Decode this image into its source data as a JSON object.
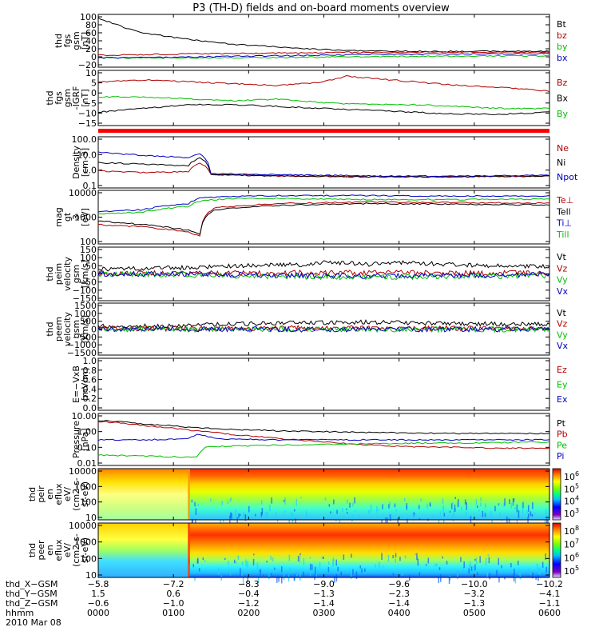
{
  "title": "P3 (TH-D) fields and on-board moments overview",
  "chart_data": [
    {
      "type": "line",
      "ylabel": [
        "thd",
        "fgs",
        "gsm",
        "[nT]"
      ],
      "y_ticks": [
        "100",
        "80",
        "60",
        "40",
        "20",
        "0",
        "−20"
      ],
      "ylim": [
        -20,
        100
      ],
      "series": [
        {
          "name": "Bt",
          "color": "#000000",
          "x": [
            0,
            0.05,
            0.1,
            0.2,
            0.3,
            0.4,
            0.5,
            0.55,
            0.6,
            0.7,
            0.8,
            0.9,
            1
          ],
          "y": [
            92,
            73,
            58,
            43,
            32,
            26,
            20,
            18,
            17,
            16,
            16,
            16,
            16
          ]
        },
        {
          "name": "bz",
          "color": "#b00000",
          "x": [
            0,
            0.2,
            0.4,
            0.6,
            0.8,
            1
          ],
          "y": [
            7,
            10,
            12,
            14,
            14,
            14
          ]
        },
        {
          "name": "by",
          "color": "#00c000",
          "x": [
            0,
            0.2,
            0.4,
            0.6,
            0.8,
            1
          ],
          "y": [
            1,
            1,
            2,
            4,
            5,
            6
          ]
        },
        {
          "name": "bx",
          "color": "#0000c0",
          "x": [
            0,
            0.2,
            0.4,
            0.6,
            0.8,
            1
          ],
          "y": [
            1,
            3,
            6,
            9,
            10,
            11
          ]
        }
      ]
    },
    {
      "type": "line",
      "ylabel": [
        "thd",
        "fgs",
        "gsm",
        "-IGRF",
        "[nT]"
      ],
      "y_ticks": [
        "10",
        "5",
        "0",
        "−5",
        "−10",
        "−15"
      ],
      "ylim": [
        -17,
        12
      ],
      "series": [
        {
          "name": "Bz",
          "color": "#b00000",
          "x": [
            0,
            0.1,
            0.2,
            0.3,
            0.4,
            0.5,
            0.55,
            0.6,
            0.7,
            0.8,
            0.9,
            1
          ],
          "y": [
            6,
            7,
            6,
            5,
            4,
            6,
            9,
            8,
            6,
            4,
            3,
            1
          ]
        },
        {
          "name": "Bx",
          "color": "#000000",
          "x": [
            0,
            0.1,
            0.2,
            0.3,
            0.4,
            0.5,
            0.6,
            0.7,
            0.8,
            0.9,
            1
          ],
          "y": [
            -10,
            -8,
            -6,
            -6,
            -7,
            -8,
            -9,
            -10,
            -11,
            -11,
            -10
          ]
        },
        {
          "name": "By",
          "color": "#00c000",
          "x": [
            0,
            0.1,
            0.2,
            0.3,
            0.4,
            0.5,
            0.6,
            0.7,
            0.8,
            0.9,
            1
          ],
          "y": [
            -2,
            -2,
            -3,
            -4,
            -3,
            -5,
            -6,
            -6,
            -7,
            -8,
            -8
          ]
        }
      ]
    },
    {
      "type": "line",
      "ylabel": [
        "Density",
        "[cm-3]"
      ],
      "y_ticks": [
        "100.0",
        "10.0",
        "1.0",
        "0.1"
      ],
      "ylim": [
        0.1,
        100
      ],
      "scale": "log",
      "series": [
        {
          "name": "Ne",
          "color": "#b00000",
          "x": [
            0,
            0.1,
            0.2,
            0.225,
            0.25,
            0.4,
            0.6,
            0.8,
            1
          ],
          "y": [
            1.0,
            0.8,
            0.9,
            3,
            0.6,
            0.5,
            0.45,
            0.45,
            0.5
          ]
        },
        {
          "name": "Ni",
          "color": "#000000",
          "x": [
            0,
            0.1,
            0.2,
            0.225,
            0.25,
            0.4,
            0.6,
            0.8,
            1
          ],
          "y": [
            3,
            2.5,
            2,
            6,
            0.6,
            0.5,
            0.45,
            0.45,
            0.5
          ]
        },
        {
          "name": "Npot",
          "color": "#0000c0",
          "x": [
            0,
            0.1,
            0.2,
            0.225,
            0.25,
            0.4,
            0.6,
            0.8,
            1
          ],
          "y": [
            12,
            8,
            6,
            10,
            0.7,
            0.6,
            0.5,
            0.5,
            0.55
          ]
        }
      ]
    },
    {
      "type": "line",
      "ylabel": [
        "mag",
        "gt",
        "3",
        "[eV]"
      ],
      "y_ticks": [
        "10000",
        "1000",
        "100"
      ],
      "ylim": [
        20,
        12000
      ],
      "scale": "log",
      "series": [
        {
          "name": "Te⊥",
          "color": "#b00000",
          "x": [
            0,
            0.1,
            0.2,
            0.225,
            0.26,
            0.4,
            0.6,
            0.8,
            1
          ],
          "y": [
            200,
            150,
            80,
            50,
            1500,
            2500,
            3000,
            2800,
            2600
          ]
        },
        {
          "name": "Tell",
          "color": "#000000",
          "x": [
            0,
            0.1,
            0.2,
            0.225,
            0.26,
            0.4,
            0.6,
            0.8,
            1
          ],
          "y": [
            300,
            200,
            100,
            60,
            1200,
            2000,
            2500,
            2300,
            2100
          ]
        },
        {
          "name": "Ti⊥",
          "color": "#0000c0",
          "x": [
            0,
            0.1,
            0.2,
            0.23,
            0.3,
            0.4,
            0.6,
            0.8,
            1
          ],
          "y": [
            900,
            1200,
            2500,
            5000,
            6000,
            6500,
            6500,
            6000,
            6000
          ]
        },
        {
          "name": "Till",
          "color": "#00c000",
          "x": [
            0,
            0.1,
            0.2,
            0.23,
            0.3,
            0.4,
            0.6,
            0.8,
            1
          ],
          "y": [
            700,
            900,
            1800,
            3500,
            4500,
            4500,
            4000,
            4000,
            4200
          ]
        }
      ]
    },
    {
      "type": "line",
      "ylabel": [
        "thd",
        "peim",
        "velocity",
        "gsm",
        "[km/s]"
      ],
      "y_ticks": [
        "150",
        "100",
        "50",
        "0",
        "−50",
        "−100",
        "−150"
      ],
      "ylim": [
        -160,
        160
      ],
      "series": [
        {
          "name": "Vt",
          "color": "#000000",
          "x": [
            0,
            0.1,
            0.2,
            0.3,
            0.4,
            0.45,
            0.5,
            0.6,
            0.7,
            0.8,
            0.9,
            1
          ],
          "y": [
            15,
            20,
            25,
            35,
            45,
            40,
            55,
            45,
            55,
            40,
            35,
            30
          ]
        },
        {
          "name": "Vz",
          "color": "#b00000",
          "x": [
            0,
            0.2,
            0.4,
            0.6,
            0.8,
            1
          ],
          "y": [
            2,
            3,
            5,
            8,
            5,
            3
          ]
        },
        {
          "name": "Vy",
          "color": "#00c000",
          "x": [
            0,
            0.2,
            0.4,
            0.6,
            0.8,
            1
          ],
          "y": [
            0,
            -5,
            -15,
            -20,
            -15,
            -10
          ]
        },
        {
          "name": "Vx",
          "color": "#0000c0",
          "x": [
            0,
            0.2,
            0.4,
            0.6,
            0.8,
            1
          ],
          "y": [
            0,
            -2,
            -8,
            -12,
            -8,
            -5
          ]
        }
      ]
    },
    {
      "type": "line",
      "ylabel": [
        "thd",
        "peem",
        "velocity",
        "gsm",
        "[km/s]"
      ],
      "y_ticks": [
        "1500",
        "1000",
        "500",
        "0",
        "−500",
        "−1000",
        "−1500"
      ],
      "ylim": [
        -1600,
        1600
      ],
      "series": [
        {
          "name": "Vt",
          "color": "#000000",
          "x": [
            0,
            0.1,
            0.2,
            0.25,
            0.4,
            0.6,
            0.8,
            1
          ],
          "y": [
            50,
            60,
            80,
            150,
            250,
            300,
            200,
            180
          ]
        },
        {
          "name": "Vz",
          "color": "#b00000",
          "x": [
            0,
            0.25,
            0.5,
            0.75,
            1
          ],
          "y": [
            20,
            40,
            60,
            50,
            40
          ]
        },
        {
          "name": "Vy",
          "color": "#00c000",
          "x": [
            0,
            0.25,
            0.5,
            0.75,
            1
          ],
          "y": [
            0,
            -20,
            -30,
            -20,
            -10
          ]
        },
        {
          "name": "Vx",
          "color": "#0000c0",
          "x": [
            0,
            0.25,
            0.5,
            0.75,
            1
          ],
          "y": [
            0,
            -10,
            -20,
            -10,
            0
          ]
        }
      ]
    },
    {
      "type": "line",
      "ylabel": [
        "E=−VxB",
        "[mV/m]"
      ],
      "y_ticks": [
        "1.0",
        "0.8",
        "0.6",
        "0.4",
        "0.2",
        "0.0"
      ],
      "ylim": [
        0,
        1
      ],
      "series": [
        {
          "name": "Ez",
          "color": "#b00000",
          "x": [],
          "y": []
        },
        {
          "name": "Ey",
          "color": "#00c000",
          "x": [],
          "y": []
        },
        {
          "name": "Ex",
          "color": "#0000c0",
          "x": [],
          "y": []
        }
      ]
    },
    {
      "type": "line",
      "ylabel": [
        "Pressure",
        "[nPa]"
      ],
      "y_ticks": [
        "10.00",
        "1.00",
        "0.10",
        "0.01"
      ],
      "ylim": [
        0.01,
        10
      ],
      "scale": "log",
      "series": [
        {
          "name": "Pt",
          "color": "#000000",
          "x": [
            0,
            0.1,
            0.2,
            0.3,
            0.4,
            0.5,
            0.6,
            0.7,
            0.8,
            0.9,
            1
          ],
          "y": [
            4,
            2.5,
            1.6,
            1.2,
            1.0,
            0.9,
            0.8,
            0.75,
            0.7,
            0.7,
            0.7
          ]
        },
        {
          "name": "Pb",
          "color": "#b00000",
          "x": [
            0,
            0.1,
            0.2,
            0.3,
            0.4,
            0.5,
            0.6,
            0.7,
            0.8,
            0.9,
            1
          ],
          "y": [
            3.5,
            2,
            1.1,
            0.6,
            0.35,
            0.22,
            0.15,
            0.12,
            0.11,
            0.1,
            0.1
          ]
        },
        {
          "name": "Pe",
          "color": "#00c000",
          "x": [
            0,
            0.1,
            0.2,
            0.22,
            0.24,
            0.4,
            0.6,
            0.8,
            1
          ],
          "y": [
            0.04,
            0.035,
            0.03,
            0.03,
            0.12,
            0.15,
            0.18,
            0.2,
            0.22
          ]
        },
        {
          "name": "Pi",
          "color": "#0000c0",
          "x": [
            0,
            0.1,
            0.2,
            0.22,
            0.26,
            0.4,
            0.6,
            0.8,
            1
          ],
          "y": [
            0.3,
            0.3,
            0.35,
            0.6,
            0.35,
            0.3,
            0.3,
            0.3,
            0.3
          ]
        }
      ]
    },
    {
      "type": "heatmap",
      "ylabel": [
        "thd",
        "peir",
        "en",
        "eflux",
        "eV/",
        "(cm2-s-",
        "sr-eV)"
      ],
      "y_ticks": [
        "10000",
        "1000",
        "100",
        "10"
      ],
      "ylim": [
        7,
        25000
      ],
      "scale": "log",
      "colorbar_ticks": [
        "10^6",
        "10^5",
        "10^4",
        "10^3"
      ]
    },
    {
      "type": "heatmap",
      "ylabel": [
        "thd",
        "peer",
        "en",
        "eflux",
        "eV/",
        "(cm2-s-",
        "sr-eV)"
      ],
      "y_ticks": [
        "10000",
        "1000",
        "100",
        "10"
      ],
      "ylim": [
        7,
        25000
      ],
      "scale": "log",
      "colorbar_ticks": [
        "10^8",
        "10^7",
        "10^6",
        "10^5"
      ]
    }
  ],
  "x_axis": {
    "rows": [
      {
        "label": "thd_X−GSM",
        "values": [
          "−5.8",
          "−7.2",
          "−8.3",
          "−9.0",
          "−9.6",
          "−10.0",
          "−10.2"
        ]
      },
      {
        "label": "thd_Y−GSM",
        "values": [
          "1.5",
          "0.6",
          "−0.4",
          "−1.3",
          "−2.3",
          "−3.2",
          "−4.1"
        ]
      },
      {
        "label": "thd_Z−GSM",
        "values": [
          "−0.6",
          "−1.0",
          "−1.2",
          "−1.4",
          "−1.4",
          "−1.3",
          "−1.1"
        ]
      },
      {
        "label": "hhmm",
        "values": [
          "0000",
          "0100",
          "0200",
          "0300",
          "0400",
          "0500",
          "0600"
        ]
      }
    ],
    "date": "2010 Mar 08"
  }
}
